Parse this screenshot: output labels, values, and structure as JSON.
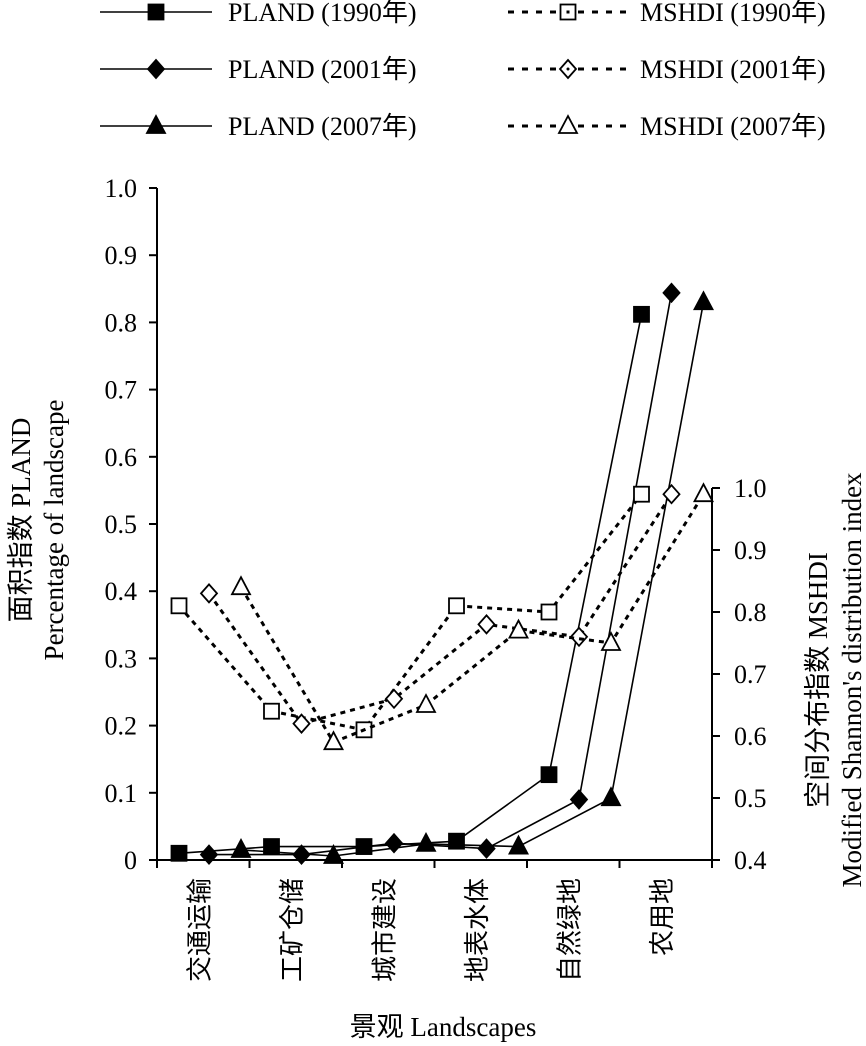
{
  "chart_data": {
    "type": "line",
    "categories": [
      "交通运输",
      "工矿仓储",
      "城市建设",
      "地表水体",
      "自然绿地",
      "农用地"
    ],
    "xlabel": "景观 Landscapes",
    "ylabel_left": [
      "面积指数 PLAND",
      "Percentage of landscape"
    ],
    "ylabel_right": [
      "空间分布指数 MSHDI",
      "Modified Shannon's distribution index"
    ],
    "ylim_left": [
      0,
      1.0
    ],
    "ylim_right": [
      0.4,
      1.0
    ],
    "yticks_left": [
      "0",
      "0.1",
      "0.2",
      "0.3",
      "0.4",
      "0.5",
      "0.6",
      "0.7",
      "0.8",
      "0.9",
      "1.0"
    ],
    "yticks_right": [
      "0.4",
      "0.5",
      "0.6",
      "0.7",
      "0.8",
      "0.9",
      "1.0"
    ],
    "grid": false,
    "legend_position": "top",
    "series": [
      {
        "name": "PLAND (1990年)",
        "axis": "left",
        "marker": "square-filled",
        "line": "solid",
        "values": [
          0.01,
          0.02,
          0.02,
          0.028,
          0.127,
          0.812
        ]
      },
      {
        "name": "PLAND (2001年)",
        "axis": "left",
        "marker": "diamond-filled",
        "line": "solid",
        "values": [
          0.008,
          0.008,
          0.025,
          0.017,
          0.09,
          0.844
        ]
      },
      {
        "name": "PLAND (2007年)",
        "axis": "left",
        "marker": "triangle-filled",
        "line": "solid",
        "values": [
          0.015,
          0.006,
          0.024,
          0.02,
          0.092,
          0.83
        ]
      },
      {
        "name": "MSHDI (1990年)",
        "axis": "right",
        "marker": "square-open",
        "line": "dashed",
        "values": [
          0.81,
          0.64,
          0.61,
          0.81,
          0.8,
          0.99
        ]
      },
      {
        "name": "MSHDI (2001年)",
        "axis": "right",
        "marker": "diamond-open",
        "line": "dashed",
        "values": [
          0.83,
          0.62,
          0.66,
          0.78,
          0.76,
          0.99
        ]
      },
      {
        "name": "MSHDI (2007年)",
        "axis": "right",
        "marker": "triangle-open",
        "line": "dashed",
        "values": [
          0.84,
          0.59,
          0.65,
          0.77,
          0.75,
          0.99
        ]
      }
    ]
  }
}
